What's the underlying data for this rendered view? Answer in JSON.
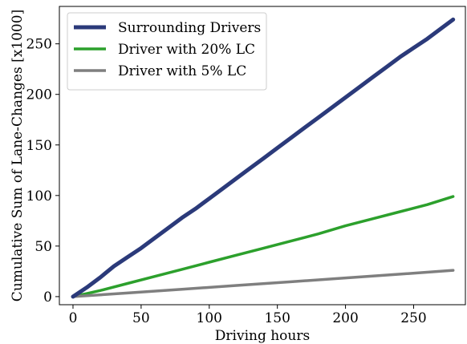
{
  "chart_data": {
    "type": "line",
    "xlabel": "Driving hours",
    "ylabel": "Cumulative Sum of Lane-Changes [x1000]",
    "xlim": [
      -10,
      288
    ],
    "ylim": [
      -8,
      287
    ],
    "xticks": [
      0,
      50,
      100,
      150,
      200,
      250
    ],
    "yticks": [
      0,
      50,
      100,
      150,
      200,
      250
    ],
    "grid": false,
    "legend_position": "top-left",
    "series": [
      {
        "name": "Surrounding Drivers",
        "color": "#2b3a7a",
        "x": [
          0,
          10,
          20,
          30,
          40,
          50,
          60,
          70,
          80,
          90,
          100,
          110,
          120,
          130,
          140,
          150,
          160,
          170,
          180,
          190,
          200,
          210,
          220,
          230,
          240,
          250,
          260,
          270,
          279
        ],
        "y": [
          0,
          9,
          19,
          30,
          39,
          48,
          58,
          68,
          78,
          87,
          97,
          107,
          117,
          127,
          137,
          147,
          157,
          167,
          177,
          187,
          197,
          207,
          217,
          227,
          237,
          246,
          255,
          265,
          274
        ]
      },
      {
        "name": "Driver with 20% LC",
        "color": "#2ca02c",
        "x": [
          0,
          20,
          40,
          60,
          80,
          100,
          120,
          140,
          160,
          180,
          200,
          220,
          240,
          260,
          279
        ],
        "y": [
          0,
          6,
          13,
          20,
          27,
          34,
          41,
          48,
          55,
          62,
          70,
          77,
          84,
          91,
          99
        ]
      },
      {
        "name": "Driver with 5% LC",
        "color": "#7f7f7f",
        "x": [
          0,
          40,
          80,
          120,
          160,
          200,
          240,
          279
        ],
        "y": [
          0,
          3.6,
          7.3,
          11,
          14.7,
          18.5,
          22.2,
          26
        ]
      }
    ]
  }
}
